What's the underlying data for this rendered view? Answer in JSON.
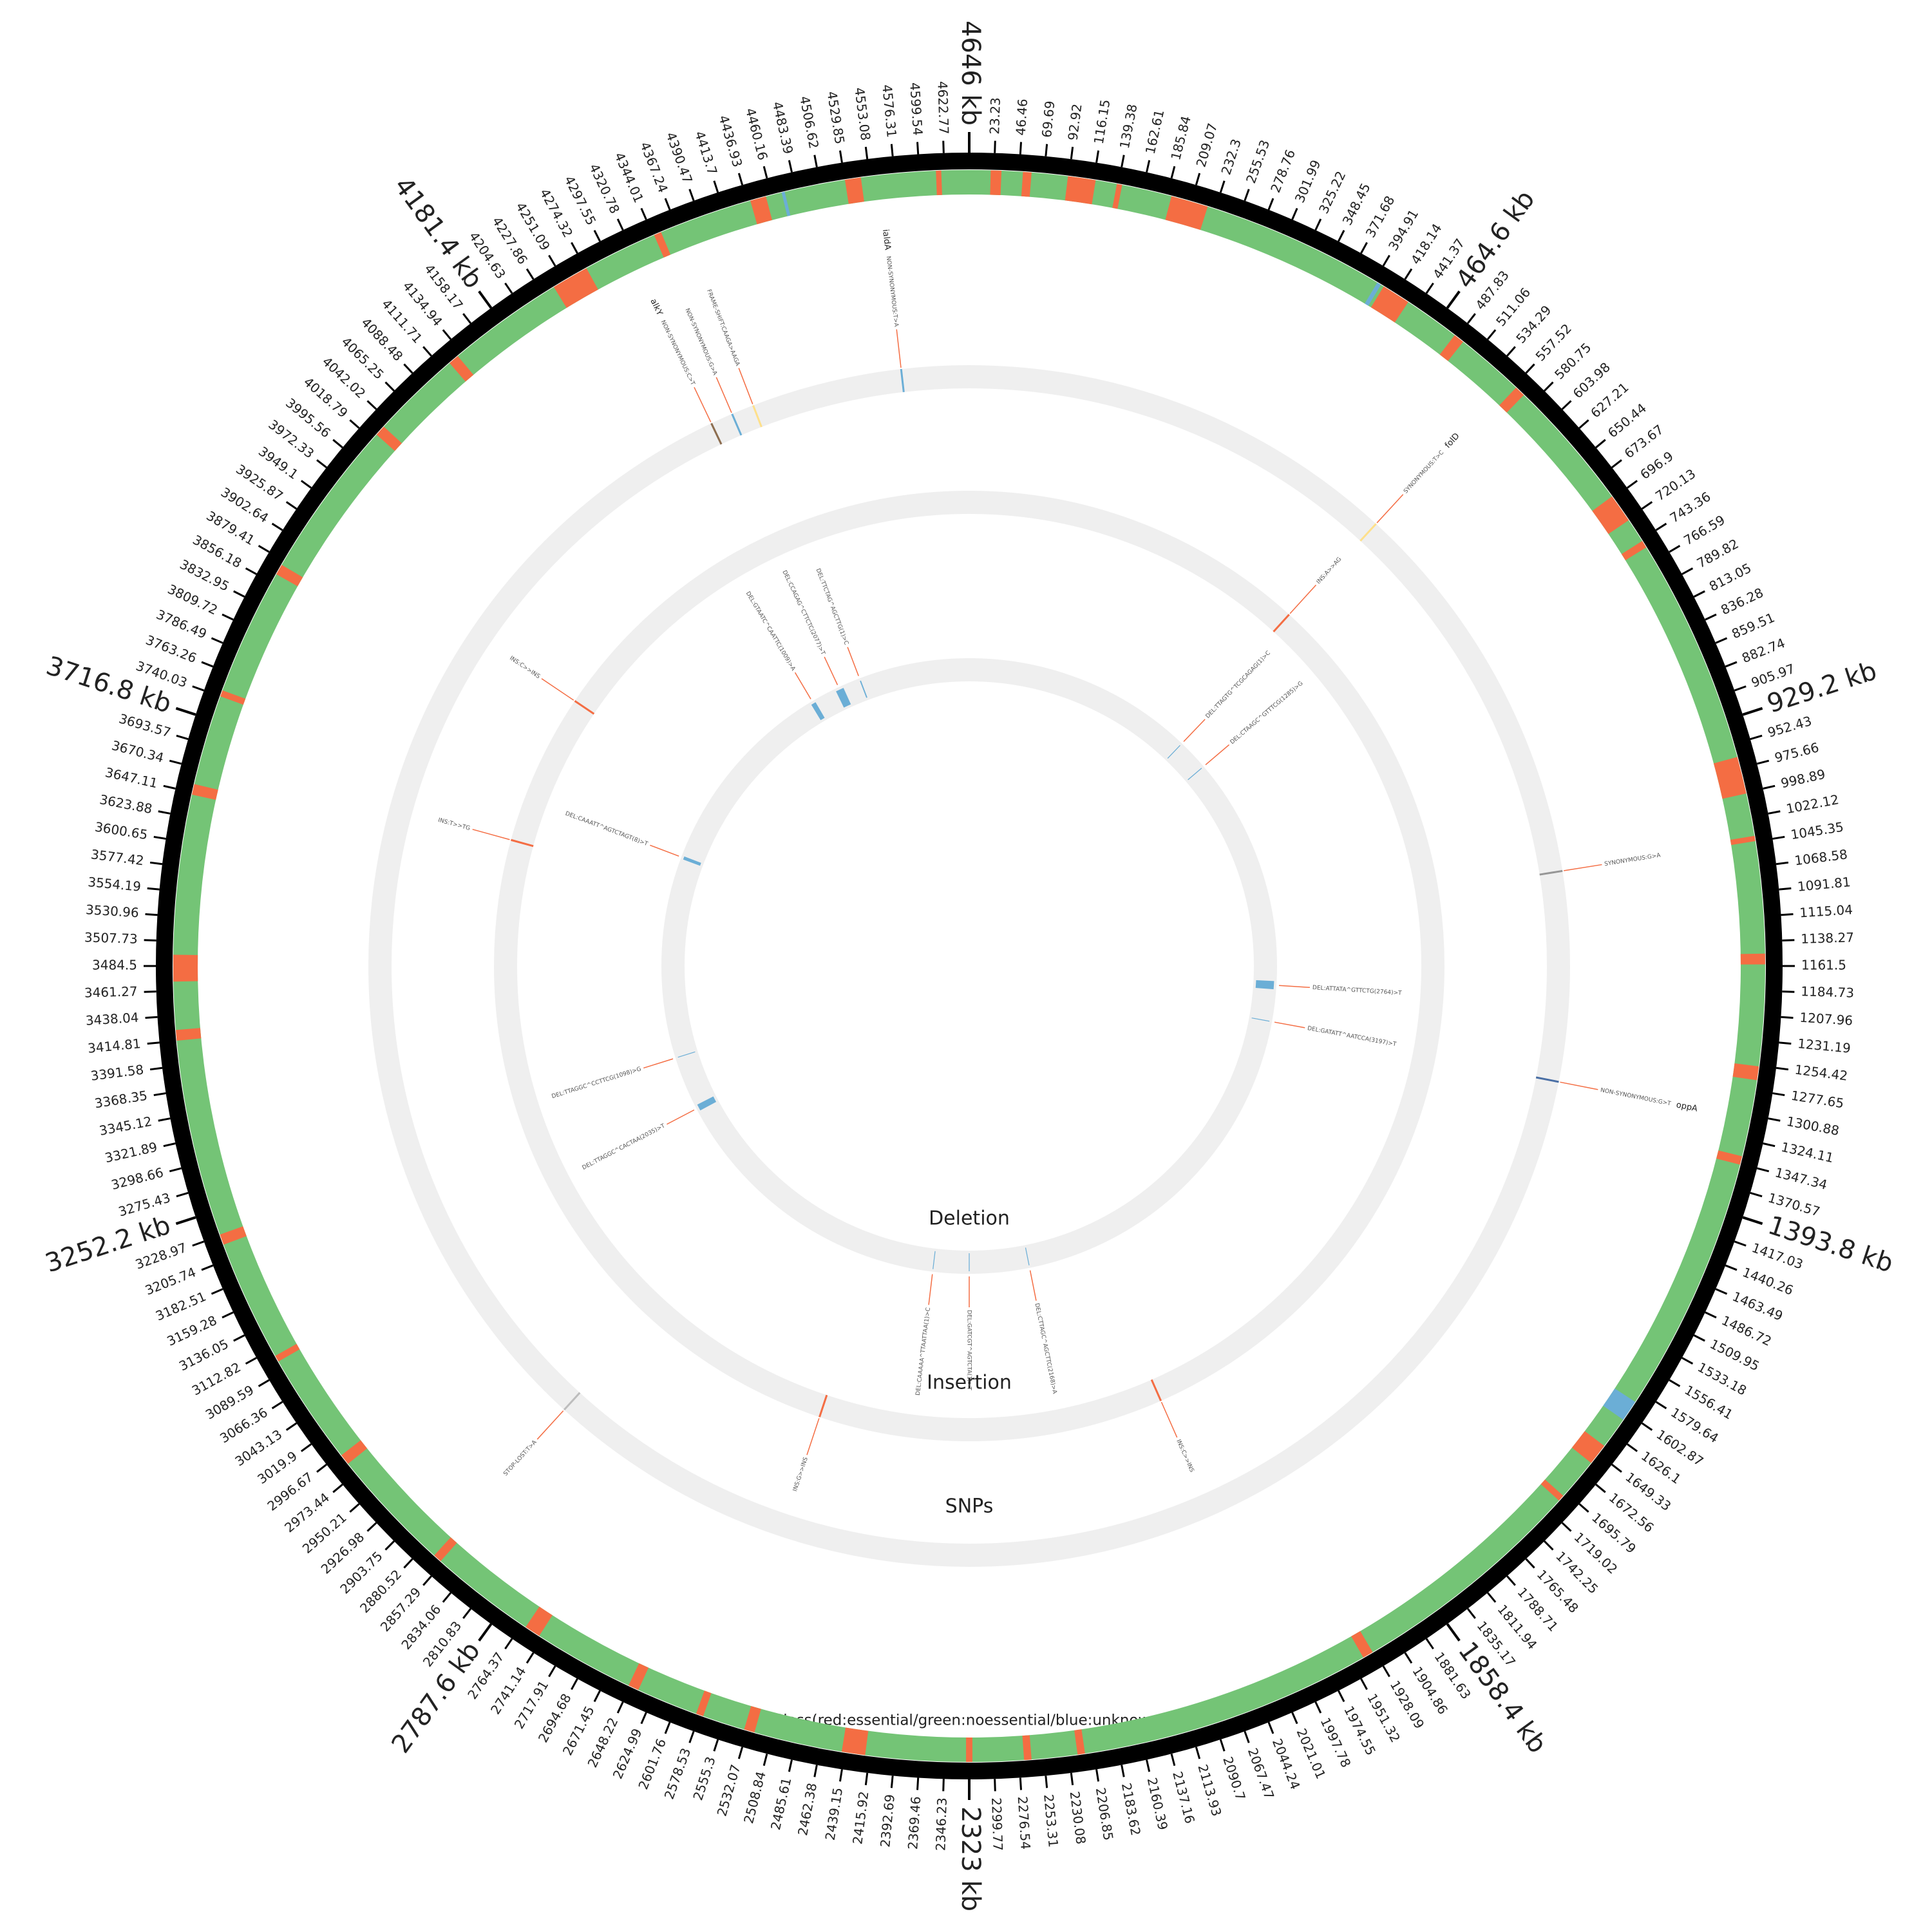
{
  "chart_data": {
    "type": "circos",
    "xlim": [
      0,
      4646
    ],
    "xticks": [
      23.23,
      46.46,
      69.69,
      92.92,
      116.15,
      139.38,
      162.61,
      185.84,
      209.07,
      232.3,
      255.53,
      278.76,
      301.99,
      325.22,
      348.45,
      371.68,
      394.91,
      418.14,
      441.37,
      487.83,
      511.06,
      534.29,
      557.52,
      580.75,
      603.98,
      627.21,
      650.44,
      673.67,
      696.9,
      720.13,
      743.36,
      766.59,
      789.82,
      813.05,
      836.28,
      859.51,
      882.74,
      905.97,
      952.43,
      975.66,
      998.89,
      1022.12,
      1045.35,
      1068.58,
      1091.81,
      1115.04,
      1138.27,
      1161.5,
      1184.73,
      1207.96,
      1231.19,
      1254.42,
      1277.65,
      1300.88,
      1324.11,
      1347.34,
      1370.57,
      1417.03,
      1440.26,
      1463.49,
      1486.72,
      1509.95,
      1533.18,
      1556.41,
      1579.64,
      1602.87,
      1626.1,
      1649.33,
      1672.56,
      1695.79,
      1719.02,
      1742.25,
      1765.48,
      1788.71,
      1811.94,
      1835.17,
      1881.63,
      1904.86,
      1928.09,
      1951.32,
      1974.55,
      1997.78,
      2021.01,
      2044.24,
      2067.47,
      2090.7,
      2113.93,
      2137.16,
      2160.39,
      2183.62,
      2206.85,
      2230.08,
      2253.31,
      2276.54,
      2299.77,
      2346.23,
      2369.46,
      2392.69,
      2415.92,
      2439.15,
      2462.38,
      2485.61,
      2508.84,
      2532.07,
      2555.3,
      2578.53,
      2601.76,
      2624.99,
      2648.22,
      2671.45,
      2694.68,
      2717.91,
      2741.14,
      2764.37,
      2810.83,
      2834.06,
      2857.29,
      2880.52,
      2903.75,
      2926.98,
      2950.21,
      2973.44,
      2996.67,
      3019.9,
      3043.13,
      3066.36,
      3089.59,
      3112.82,
      3136.05,
      3159.28,
      3182.51,
      3205.74,
      3228.97,
      3275.43,
      3298.66,
      3321.89,
      3345.12,
      3368.35,
      3391.58,
      3414.81,
      3438.04,
      3461.27,
      3484.5,
      3507.73,
      3530.96,
      3554.19,
      3577.42,
      3600.65,
      3623.88,
      3647.11,
      3670.34,
      3693.57,
      3740.03,
      3763.26,
      3786.49,
      3809.72,
      3832.95,
      3856.18,
      3879.41,
      3902.64,
      3925.87,
      3949.1,
      3972.33,
      3995.56,
      4018.79,
      4042.02,
      4065.25,
      4088.48,
      4111.71,
      4134.94,
      4158.17,
      4204.63,
      4227.86,
      4251.09,
      4274.32,
      4297.55,
      4320.78,
      4344.01,
      4367.24,
      4390.47,
      4413.7,
      4436.93,
      4460.16,
      4483.39,
      4506.62,
      4529.85,
      4553.08,
      4576.31,
      4599.54,
      4622.77
    ],
    "major_ticks": [
      {
        "value": 464.6,
        "label": "464.6 kb"
      },
      {
        "value": 929.2,
        "label": "929.2 kb"
      },
      {
        "value": 1393.8,
        "label": "1393.8 kb"
      },
      {
        "value": 1858.4,
        "label": "1858.4 kb"
      },
      {
        "value": 2323,
        "label": "2323 kb"
      },
      {
        "value": 2787.6,
        "label": "2787.6 kb"
      },
      {
        "value": 3252.2,
        "label": "3252.2 kb"
      },
      {
        "value": 3716.8,
        "label": "3716.8 kb"
      },
      {
        "value": 4181.4,
        "label": "4181.4 kb"
      },
      {
        "value": 4646,
        "label": "4646 kb"
      }
    ],
    "class_track": {
      "label": "Class(red:essential/green:noessential/blue:unknown)",
      "colors": {
        "essential": "#f46d43",
        "noessential": "#74c476",
        "unknown": "#6baed6"
      },
      "essential": [
        [
          20,
          30
        ],
        [
          50,
          58
        ],
        [
          92,
          118
        ],
        [
          138,
          143
        ],
        [
          190,
          225
        ],
        [
          405,
          432
        ],
        [
          485,
          495
        ],
        [
          560,
          570
        ],
        [
          695,
          722
        ],
        [
          745,
          752
        ],
        [
          965,
          1000
        ],
        [
          1040,
          1045
        ],
        [
          1150,
          1160
        ],
        [
          1255,
          1268
        ],
        [
          1340,
          1348
        ],
        [
          1640,
          1660
        ],
        [
          1700,
          1706
        ],
        [
          1930,
          1940
        ],
        [
          2215,
          2222
        ],
        [
          2265,
          2272
        ],
        [
          2320,
          2326
        ],
        [
          2420,
          2442
        ],
        [
          2525,
          2535
        ],
        [
          2575,
          2582
        ],
        [
          2640,
          2650
        ],
        [
          2745,
          2760
        ],
        [
          2860,
          2868
        ],
        [
          2985,
          2995
        ],
        [
          3100,
          3106
        ],
        [
          3220,
          3230
        ],
        [
          3415,
          3425
        ],
        [
          3470,
          3495
        ],
        [
          3645,
          3655
        ],
        [
          3740,
          3746
        ],
        [
          3865,
          3875
        ],
        [
          4025,
          4035
        ],
        [
          4120,
          4130
        ],
        [
          4240,
          4275
        ],
        [
          4345,
          4352
        ],
        [
          4440,
          4455
        ],
        [
          4530,
          4545
        ],
        [
          4615,
          4620
        ]
      ],
      "unknown": [
        [
          398,
          402
        ],
        [
          1590,
          1610
        ],
        [
          4470,
          4473
        ]
      ]
    },
    "snps": {
      "label": "SNPs",
      "variants": [
        {
          "position": 4562,
          "color": "#6baed6",
          "text": "NON-SYNONYMOUS:T>A",
          "gene": "ialdA"
        },
        {
          "position": 4374,
          "color": "#fee08b",
          "text": "FRAME-SHIFT:CAAGA>AAGA"
        },
        {
          "position": 4346,
          "color": "#6baed6",
          "text": "NON-SYNONYMOUS:G>A"
        },
        {
          "position": 4318,
          "color": "#8c6d4f",
          "text": "NON-SYNONYMOUS:C>T",
          "gene": "alkY"
        },
        {
          "position": 550,
          "color": "#fee08b",
          "text": "SYNONYMOUS:T>C",
          "gene": "folD"
        },
        {
          "position": 1044,
          "color": "#969696",
          "text": "SYNONYMOUS:G>A"
        },
        {
          "position": 1305,
          "color": "#4a6fa5",
          "text": "NON-SYNONYMOUS:G>T",
          "gene": "oppA"
        },
        {
          "position": 2870,
          "color": "#bdbdbd",
          "text": "STOP-LOST:T>A"
        }
      ]
    },
    "insertions": {
      "label": "Insertion",
      "variants": [
        {
          "position": 546,
          "color": "#f46d43",
          "text": "INS:A>>AG"
        },
        {
          "position": 3922,
          "color": "#f46d43",
          "text": "INS:C>>INS"
        },
        {
          "position": 3683,
          "color": "#f46d43",
          "text": "INS:T>>TG"
        },
        {
          "position": 2560,
          "color": "#f46d43",
          "text": "INS:G>>INS"
        },
        {
          "position": 2016,
          "color": "#f46d43",
          "text": "INS:C>>INS"
        }
      ]
    },
    "deletions": {
      "label": "Deletion",
      "color": "#6baed6",
      "variants": [
        {
          "start": 1198,
          "end": 1218,
          "text": "DEL:ATTATA^GTTCTG(2764)>T"
        },
        {
          "start": 1295,
          "end": 1297,
          "text": "DEL:GATATT^AATCCA(3197)>T"
        },
        {
          "start": 2176,
          "end": 2178,
          "text": "DEL:CTTAGC^AGCTTC(2168)>A"
        },
        {
          "start": 2322,
          "end": 2324,
          "text": "DEL:GATCGT^AGTCTA(1)>T"
        },
        {
          "start": 2410,
          "end": 2412,
          "text": "DEL:CAAAAA^TTAATTAA(1)>C"
        },
        {
          "start": 3120,
          "end": 3136,
          "text": "DEL:TTAGGC^CACTAA(2035)>T"
        },
        {
          "start": 3259,
          "end": 3261,
          "text": "DEL:TTAGGC^CCTTCG(1098)>G"
        },
        {
          "start": 3748,
          "end": 3756,
          "text": "DEL:CAAATT^AGTCTAGT(8)>T"
        },
        {
          "start": 4244,
          "end": 4256,
          "text": "DEL:GTAATC^CAATTC(1009)>A"
        },
        {
          "start": 4312,
          "end": 4332,
          "text": "DEL:CCAGAG^CTTCTC(2077)>T"
        },
        {
          "start": 4375,
          "end": 4378,
          "text": "DEL:TTCTAG^AGCTTG(1)>C"
        },
        {
          "start": 563,
          "end": 565,
          "text": "DEL:TTAGTG^TCGCAGAG(1)>C"
        },
        {
          "start": 639,
          "end": 641,
          "text": "DEL:CTAAGC^GTTTCG(1285)>G"
        }
      ]
    }
  }
}
